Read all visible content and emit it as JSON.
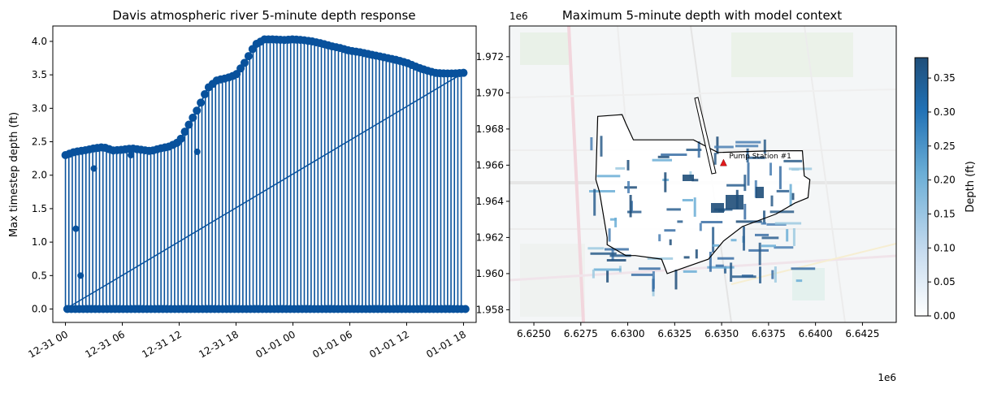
{
  "chart_data": [
    {
      "type": "line",
      "title": "Davis atmospheric river 5-minute depth response",
      "xlabel": "",
      "ylabel": "Max timestep depth (ft)",
      "xtick_labels": [
        "12-31 00",
        "12-31 06",
        "12-31 12",
        "12-31 18",
        "01-01 00",
        "01-01 06",
        "01-01 12",
        "01-01 18"
      ],
      "yticks": [
        0.0,
        0.5,
        1.0,
        1.5,
        2.0,
        2.5,
        3.0,
        3.5,
        4.0
      ],
      "ytick_labels": [
        "0.0",
        "0.5",
        "1.0",
        "1.5",
        "2.0",
        "2.5",
        "3.0",
        "3.5",
        "4.0"
      ],
      "xlim": [
        "12-30 22:40",
        "01-01 19:20"
      ],
      "ylim": [
        -0.2,
        4.23
      ],
      "marker": "circle",
      "color": "#08519c",
      "grid": false,
      "series": [
        {
          "x": [
            "12-31 00:00",
            "12-31 01:00",
            "12-31 02:00",
            "12-31 03:00",
            "12-31 04:00",
            "12-31 05:00",
            "12-31 06:00",
            "12-31 07:00",
            "12-31 08:00",
            "12-31 09:00",
            "12-31 10:00",
            "12-31 11:00",
            "12-31 12:00",
            "12-31 13:00",
            "12-31 14:00",
            "12-31 15:00",
            "12-31 16:00",
            "12-31 17:00",
            "12-31 18:00",
            "12-31 19:00",
            "12-31 20:00",
            "12-31 21:00",
            "12-31 22:00",
            "12-31 23:00",
            "01-01 00:00",
            "01-01 01:00",
            "01-01 02:00",
            "01-01 03:00",
            "01-01 04:00",
            "01-01 05:00",
            "01-01 06:00",
            "01-01 07:00",
            "01-01 08:00",
            "01-01 09:00",
            "01-01 10:00",
            "01-01 11:00",
            "01-01 12:00",
            "01-01 13:00",
            "01-01 14:00",
            "01-01 15:00",
            "01-01 16:00",
            "01-01 17:00",
            "01-01 18:00"
          ],
          "values": [
            2.3,
            2.35,
            2.37,
            2.4,
            2.42,
            2.37,
            2.38,
            2.4,
            2.38,
            2.36,
            2.4,
            2.43,
            2.5,
            2.75,
            3.0,
            3.3,
            3.42,
            3.45,
            3.5,
            3.7,
            3.95,
            4.03,
            4.03,
            4.02,
            4.03,
            4.02,
            4.0,
            3.97,
            3.93,
            3.9,
            3.86,
            3.84,
            3.81,
            3.78,
            3.75,
            3.72,
            3.68,
            3.62,
            3.57,
            3.53,
            3.52,
            3.52,
            3.53
          ]
        }
      ]
    },
    {
      "type": "heatmap",
      "title": "Maximum 5-minute depth with model context",
      "xlabel": "",
      "ylabel": "",
      "x_offset_label": "1e6",
      "y_offset_label": "1e6",
      "xtick_labels": [
        "6.6250",
        "6.6275",
        "6.6300",
        "6.6325",
        "6.6350",
        "6.6375",
        "6.6400",
        "6.6425"
      ],
      "ytick_labels": [
        "1.958",
        "1.960",
        "1.962",
        "1.964",
        "1.966",
        "1.968",
        "1.970",
        "1.972"
      ],
      "xlim": [
        6.6237,
        6.6443
      ],
      "ylim": [
        1.9573,
        1.9737
      ],
      "annotation": "Pump Station #1",
      "colorbar": {
        "label": "Depth (ft)",
        "ticks": [
          "0.00",
          "0.05",
          "0.10",
          "0.15",
          "0.20",
          "0.25",
          "0.30",
          "0.35"
        ],
        "range": [
          0.0,
          0.38
        ],
        "colors": [
          "#ffffff",
          "#c6dbef",
          "#6baed6",
          "#2171b5",
          "#1f4e79"
        ]
      },
      "boundary": [
        [
          6.6284,
          1.9687
        ],
        [
          6.6297,
          1.9688
        ],
        [
          6.6299,
          1.9683
        ],
        [
          6.6303,
          1.9674
        ],
        [
          6.6335,
          1.9674
        ],
        [
          6.6348,
          1.9667
        ],
        [
          6.6377,
          1.9668
        ],
        [
          6.6385,
          1.9668
        ],
        [
          6.6393,
          1.9668
        ],
        [
          6.6394,
          1.9654
        ],
        [
          6.6397,
          1.9652
        ],
        [
          6.6396,
          1.9642
        ],
        [
          6.6389,
          1.9639
        ],
        [
          6.6379,
          1.9633
        ],
        [
          6.6361,
          1.9626
        ],
        [
          6.6351,
          1.9618
        ],
        [
          6.6343,
          1.9608
        ],
        [
          6.6321,
          1.96
        ],
        [
          6.6318,
          1.9608
        ],
        [
          6.6304,
          1.961
        ],
        [
          6.6299,
          1.961
        ],
        [
          6.6289,
          1.9616
        ],
        [
          6.6289,
          1.962
        ],
        [
          6.6285,
          1.9645
        ],
        [
          6.6283,
          1.9652
        ],
        [
          6.6284,
          1.9687
        ]
      ],
      "pump_station": [
        6.6351,
        1.9661
      ]
    }
  ]
}
